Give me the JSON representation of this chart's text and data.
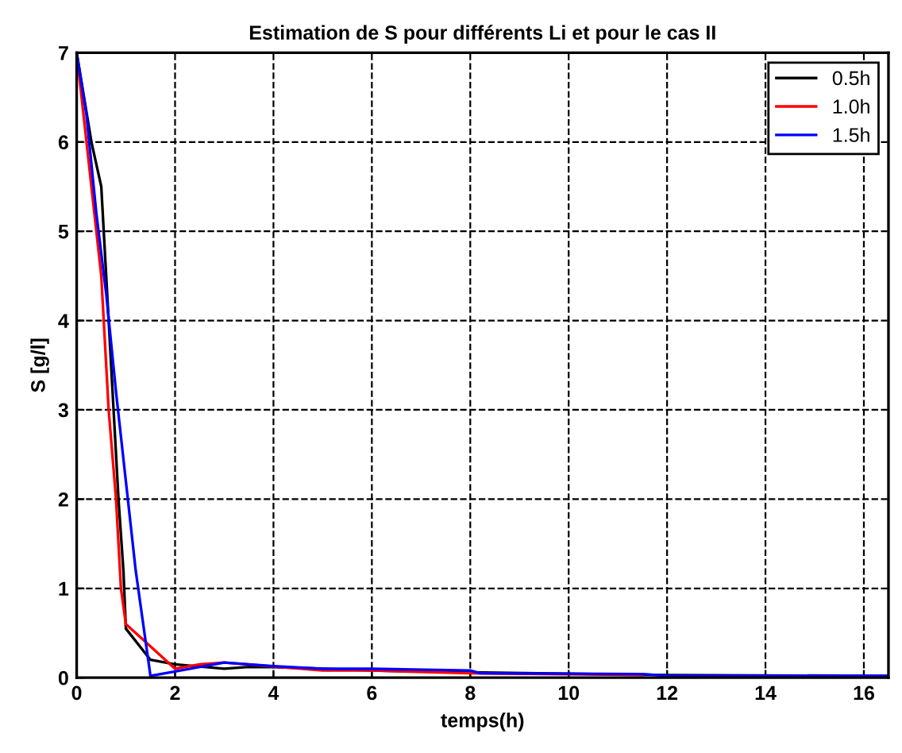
{
  "chart_data": {
    "type": "line",
    "title": "Estimation de S pour différents Li et pour le cas II",
    "xlabel": "temps(h)",
    "ylabel": "S [g/l]",
    "xlim": [
      0,
      16.5
    ],
    "ylim": [
      0,
      7
    ],
    "xticks": [
      0,
      2,
      4,
      6,
      8,
      10,
      12,
      14,
      16
    ],
    "yticks": [
      0,
      1,
      2,
      3,
      4,
      5,
      6,
      7
    ],
    "grid": true,
    "legend": "top right",
    "line_style": "solid",
    "series": [
      {
        "name": "0.5h",
        "color": "#000000",
        "x": [
          0,
          0.3,
          0.5,
          0.6,
          0.75,
          0.85,
          0.95,
          1.0,
          1.5,
          2,
          3,
          3.5,
          4,
          6,
          8,
          12,
          16.5
        ],
        "values": [
          7,
          6,
          5.5,
          4.5,
          3,
          2,
          1.2,
          0.55,
          0.2,
          0.15,
          0.1,
          0.12,
          0.12,
          0.08,
          0.06,
          0.03,
          0.02
        ]
      },
      {
        "name": "1.0h",
        "color": "#ff0000",
        "x": [
          0,
          0.1,
          0.3,
          0.5,
          0.65,
          0.8,
          0.9,
          1.0,
          1.5,
          2,
          2.5,
          3,
          5,
          6,
          8,
          11.5
        ],
        "values": [
          7,
          6.5,
          5.5,
          4.5,
          3,
          2,
          1,
          0.6,
          0.35,
          0.1,
          0.15,
          0.17,
          0.08,
          0.08,
          0.05,
          0.03
        ]
      },
      {
        "name": "1.5h",
        "color": "#0000ff",
        "x": [
          0,
          0.2,
          0.4,
          0.6,
          0.8,
          1.0,
          1.2,
          1.5,
          2,
          3,
          4,
          5,
          6,
          8,
          8.2,
          11.5,
          12,
          16.5
        ],
        "values": [
          7,
          6.3,
          5.2,
          4.3,
          3.2,
          2.2,
          1.2,
          0.02,
          0.07,
          0.17,
          0.13,
          0.1,
          0.1,
          0.08,
          0.05,
          0.04,
          0.02,
          0.02
        ]
      }
    ]
  }
}
